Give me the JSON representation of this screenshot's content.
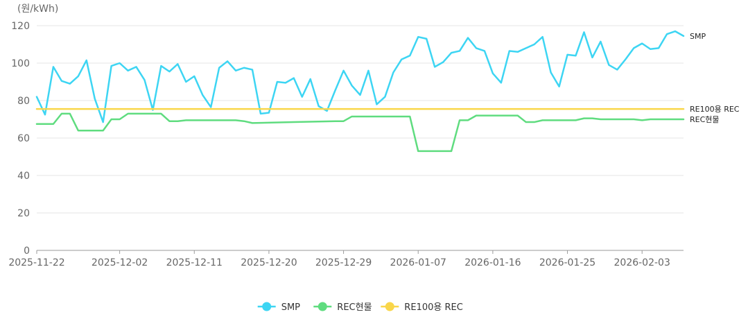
{
  "chart_data": {
    "type": "line",
    "ylabel": "(원/kWh)",
    "ylim": [
      0,
      120
    ],
    "y_ticks": [
      0,
      20,
      40,
      60,
      80,
      100,
      120
    ],
    "x_start": "2025-11-22",
    "x_end": "2026-02-08",
    "x_ticks": [
      "2025-11-22",
      "2025-12-02",
      "2025-12-11",
      "2025-12-20",
      "2025-12-29",
      "2026-01-07",
      "2026-01-16",
      "2026-01-25",
      "2026-02-03"
    ],
    "grid": "horizontal",
    "legend_position": "bottom-center",
    "series": [
      {
        "name": "SMP",
        "end_label": "SMP",
        "color": "#3dd5f3",
        "values": [
          [
            "2025-11-22",
            82.0
          ],
          [
            "2025-11-23",
            72.5
          ],
          [
            "2025-11-24",
            98.0
          ],
          [
            "2025-11-25",
            90.5
          ],
          [
            "2025-11-26",
            89.0
          ],
          [
            "2025-11-27",
            93.0
          ],
          [
            "2025-11-28",
            101.5
          ],
          [
            "2025-11-29",
            81.0
          ],
          [
            "2025-11-30",
            68.5
          ],
          [
            "2025-12-01",
            98.5
          ],
          [
            "2025-12-02",
            100.0
          ],
          [
            "2025-12-03",
            96.0
          ],
          [
            "2025-12-04",
            98.0
          ],
          [
            "2025-12-05",
            91.0
          ],
          [
            "2025-12-06",
            75.0
          ],
          [
            "2025-12-07",
            98.5
          ],
          [
            "2025-12-08",
            95.5
          ],
          [
            "2025-12-09",
            99.5
          ],
          [
            "2025-12-10",
            90.0
          ],
          [
            "2025-12-11",
            93.0
          ],
          [
            "2025-12-12",
            83.0
          ],
          [
            "2025-12-13",
            76.5
          ],
          [
            "2025-12-14",
            97.5
          ],
          [
            "2025-12-15",
            101.0
          ],
          [
            "2025-12-16",
            96.0
          ],
          [
            "2025-12-17",
            97.5
          ],
          [
            "2025-12-18",
            96.5
          ],
          [
            "2025-12-19",
            73.0
          ],
          [
            "2025-12-20",
            73.5
          ],
          [
            "2025-12-21",
            90.0
          ],
          [
            "2025-12-22",
            89.5
          ],
          [
            "2025-12-23",
            92.0
          ],
          [
            "2025-12-24",
            82.0
          ],
          [
            "2025-12-25",
            91.5
          ],
          [
            "2025-12-26",
            77.0
          ],
          [
            "2025-12-27",
            74.5
          ],
          [
            "2025-12-28",
            85.5
          ],
          [
            "2025-12-29",
            96.0
          ],
          [
            "2025-12-30",
            88.0
          ],
          [
            "2025-12-31",
            83.0
          ],
          [
            "2026-01-01",
            96.0
          ],
          [
            "2026-01-02",
            78.0
          ],
          [
            "2026-01-03",
            82.0
          ],
          [
            "2026-01-04",
            95.0
          ],
          [
            "2026-01-05",
            102.0
          ],
          [
            "2026-01-06",
            104.0
          ],
          [
            "2026-01-07",
            114.0
          ],
          [
            "2026-01-08",
            113.0
          ],
          [
            "2026-01-09",
            98.0
          ],
          [
            "2026-01-10",
            100.5
          ],
          [
            "2026-01-11",
            105.5
          ],
          [
            "2026-01-12",
            106.5
          ],
          [
            "2026-01-13",
            113.5
          ],
          [
            "2026-01-14",
            108.0
          ],
          [
            "2026-01-15",
            106.5
          ],
          [
            "2026-01-16",
            94.5
          ],
          [
            "2026-01-17",
            89.5
          ],
          [
            "2026-01-18",
            106.5
          ],
          [
            "2026-01-19",
            106.0
          ],
          [
            "2026-01-20",
            108.0
          ],
          [
            "2026-01-21",
            110.0
          ],
          [
            "2026-01-22",
            114.0
          ],
          [
            "2026-01-23",
            95.0
          ],
          [
            "2026-01-24",
            87.5
          ],
          [
            "2026-01-25",
            104.5
          ],
          [
            "2026-01-26",
            104.0
          ],
          [
            "2026-01-27",
            116.5
          ],
          [
            "2026-01-28",
            103.0
          ],
          [
            "2026-01-29",
            111.5
          ],
          [
            "2026-01-30",
            99.0
          ],
          [
            "2026-01-31",
            96.5
          ],
          [
            "2026-02-01",
            102.0
          ],
          [
            "2026-02-02",
            108.0
          ],
          [
            "2026-02-03",
            110.5
          ],
          [
            "2026-02-04",
            107.5
          ],
          [
            "2026-02-05",
            108.0
          ],
          [
            "2026-02-06",
            115.5
          ],
          [
            "2026-02-07",
            117.0
          ],
          [
            "2026-02-08",
            114.5
          ]
        ]
      },
      {
        "name": "REC현물",
        "end_label": "REC현물",
        "color": "#5fdc7f",
        "values": [
          [
            "2025-11-22",
            67.5
          ],
          [
            "2025-11-24",
            67.5
          ],
          [
            "2025-11-25",
            73.0
          ],
          [
            "2025-11-26",
            73.0
          ],
          [
            "2025-11-27",
            64.0
          ],
          [
            "2025-11-30",
            64.0
          ],
          [
            "2025-12-01",
            70.0
          ],
          [
            "2025-12-02",
            70.0
          ],
          [
            "2025-12-03",
            73.0
          ],
          [
            "2025-12-07",
            73.0
          ],
          [
            "2025-12-08",
            69.0
          ],
          [
            "2025-12-09",
            69.0
          ],
          [
            "2025-12-10",
            69.5
          ],
          [
            "2025-12-16",
            69.5
          ],
          [
            "2025-12-17",
            69.0
          ],
          [
            "2025-12-18",
            68.0
          ],
          [
            "2025-12-23",
            68.5
          ],
          [
            "2025-12-28",
            69.0
          ],
          [
            "2025-12-29",
            69.0
          ],
          [
            "2025-12-30",
            71.5
          ],
          [
            "2026-01-05",
            71.5
          ],
          [
            "2026-01-06",
            71.5
          ],
          [
            "2026-01-07",
            53.0
          ],
          [
            "2026-01-11",
            53.0
          ],
          [
            "2026-01-12",
            69.5
          ],
          [
            "2026-01-13",
            69.5
          ],
          [
            "2026-01-14",
            72.0
          ],
          [
            "2026-01-19",
            72.0
          ],
          [
            "2026-01-20",
            68.5
          ],
          [
            "2026-01-21",
            68.5
          ],
          [
            "2026-01-22",
            69.5
          ],
          [
            "2026-01-26",
            69.5
          ],
          [
            "2026-01-27",
            70.5
          ],
          [
            "2026-01-28",
            70.5
          ],
          [
            "2026-01-29",
            70.0
          ],
          [
            "2026-02-02",
            70.0
          ],
          [
            "2026-02-03",
            69.5
          ],
          [
            "2026-02-04",
            70.0
          ],
          [
            "2026-02-08",
            70.0
          ]
        ]
      },
      {
        "name": "RE100용 REC",
        "end_label": "RE100용 REC",
        "color": "#f9d64a",
        "values": [
          [
            "2025-11-22",
            75.5
          ],
          [
            "2026-02-08",
            75.5
          ]
        ]
      }
    ]
  }
}
